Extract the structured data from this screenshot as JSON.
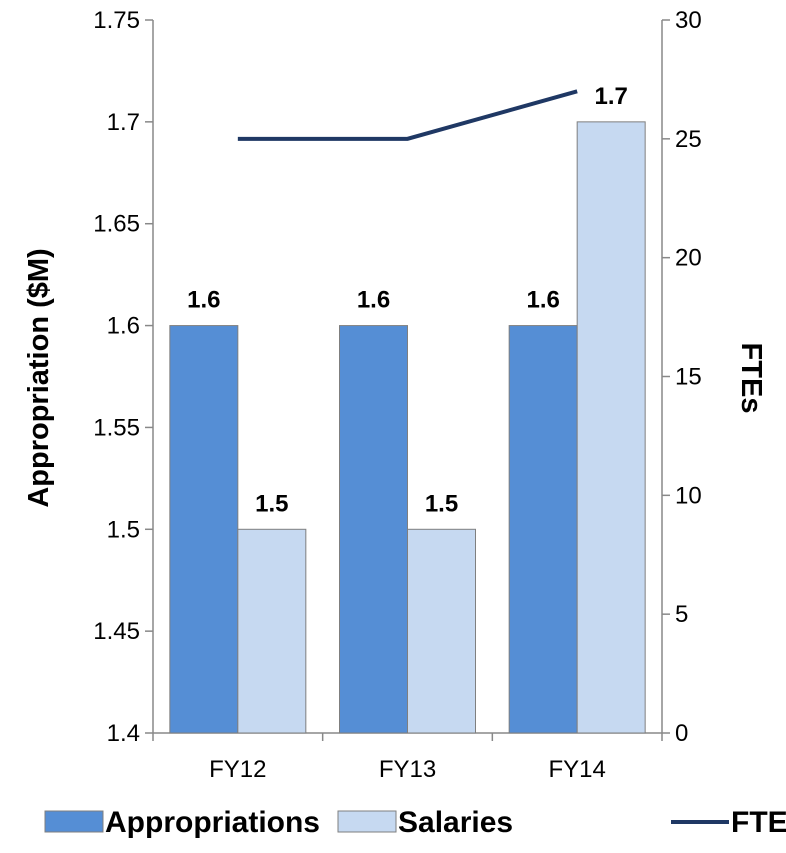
{
  "chart_data": {
    "type": "bar",
    "categories": [
      "FY12",
      "FY13",
      "FY14"
    ],
    "series": [
      {
        "name": "Appropriations",
        "type": "bar",
        "axis": "left",
        "values": [
          1.6,
          1.6,
          1.6
        ],
        "labels": [
          "1.6",
          "1.6",
          "1.6"
        ],
        "color": "#558ED5"
      },
      {
        "name": "Salaries",
        "type": "bar",
        "axis": "left",
        "values": [
          1.5,
          1.5,
          1.7
        ],
        "labels": [
          "1.5",
          "1.5",
          "1.7"
        ],
        "color": "#C6D9F1"
      },
      {
        "name": "FTEs",
        "type": "line",
        "axis": "right",
        "values": [
          25,
          25,
          27
        ],
        "color": "#1F3864"
      }
    ],
    "ylabel": "Appropriation ($M)",
    "y2label": "FTEs",
    "ylim": [
      1.4,
      1.75
    ],
    "y2lim": [
      0,
      30
    ],
    "yticks": [
      "1.75",
      "1.7",
      "1.65",
      "1.6",
      "1.55",
      "1.5",
      "1.45",
      "1.4"
    ],
    "y2ticks": [
      "30",
      "25",
      "20",
      "15",
      "10",
      "5",
      "0"
    ],
    "grid": false,
    "legend_position": "bottom"
  }
}
